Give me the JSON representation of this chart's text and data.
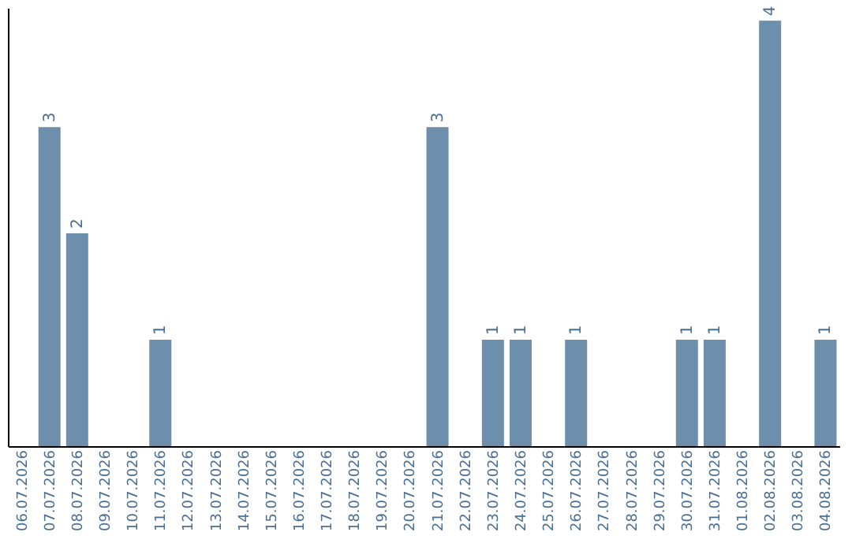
{
  "chart_data": {
    "type": "bar",
    "categories": [
      "06.07.2026",
      "07.07.2026",
      "08.07.2026",
      "09.07.2026",
      "10.07.2026",
      "11.07.2026",
      "12.07.2026",
      "13.07.2026",
      "14.07.2026",
      "15.07.2026",
      "16.07.2026",
      "17.07.2026",
      "18.07.2026",
      "19.07.2026",
      "20.07.2026",
      "21.07.2026",
      "22.07.2026",
      "23.07.2026",
      "24.07.2026",
      "25.07.2026",
      "26.07.2026",
      "27.07.2026",
      "28.07.2026",
      "29.07.2026",
      "30.07.2026",
      "31.07.2026",
      "01.08.2026",
      "02.08.2026",
      "03.08.2026",
      "04.08.2026"
    ],
    "values": [
      0,
      3,
      2,
      0,
      0,
      1,
      0,
      0,
      0,
      0,
      0,
      0,
      0,
      0,
      0,
      3,
      0,
      1,
      1,
      0,
      1,
      0,
      0,
      0,
      1,
      1,
      0,
      4,
      0,
      1
    ],
    "value_labels": [
      null,
      "3",
      "2",
      null,
      null,
      "1",
      null,
      null,
      null,
      null,
      null,
      null,
      null,
      null,
      null,
      "3",
      null,
      "1",
      "1",
      null,
      "1",
      null,
      null,
      null,
      "1",
      "1",
      null,
      "4",
      null,
      "1"
    ],
    "color": "#6d8fac",
    "grid": false,
    "tick_labels": "x"
  }
}
